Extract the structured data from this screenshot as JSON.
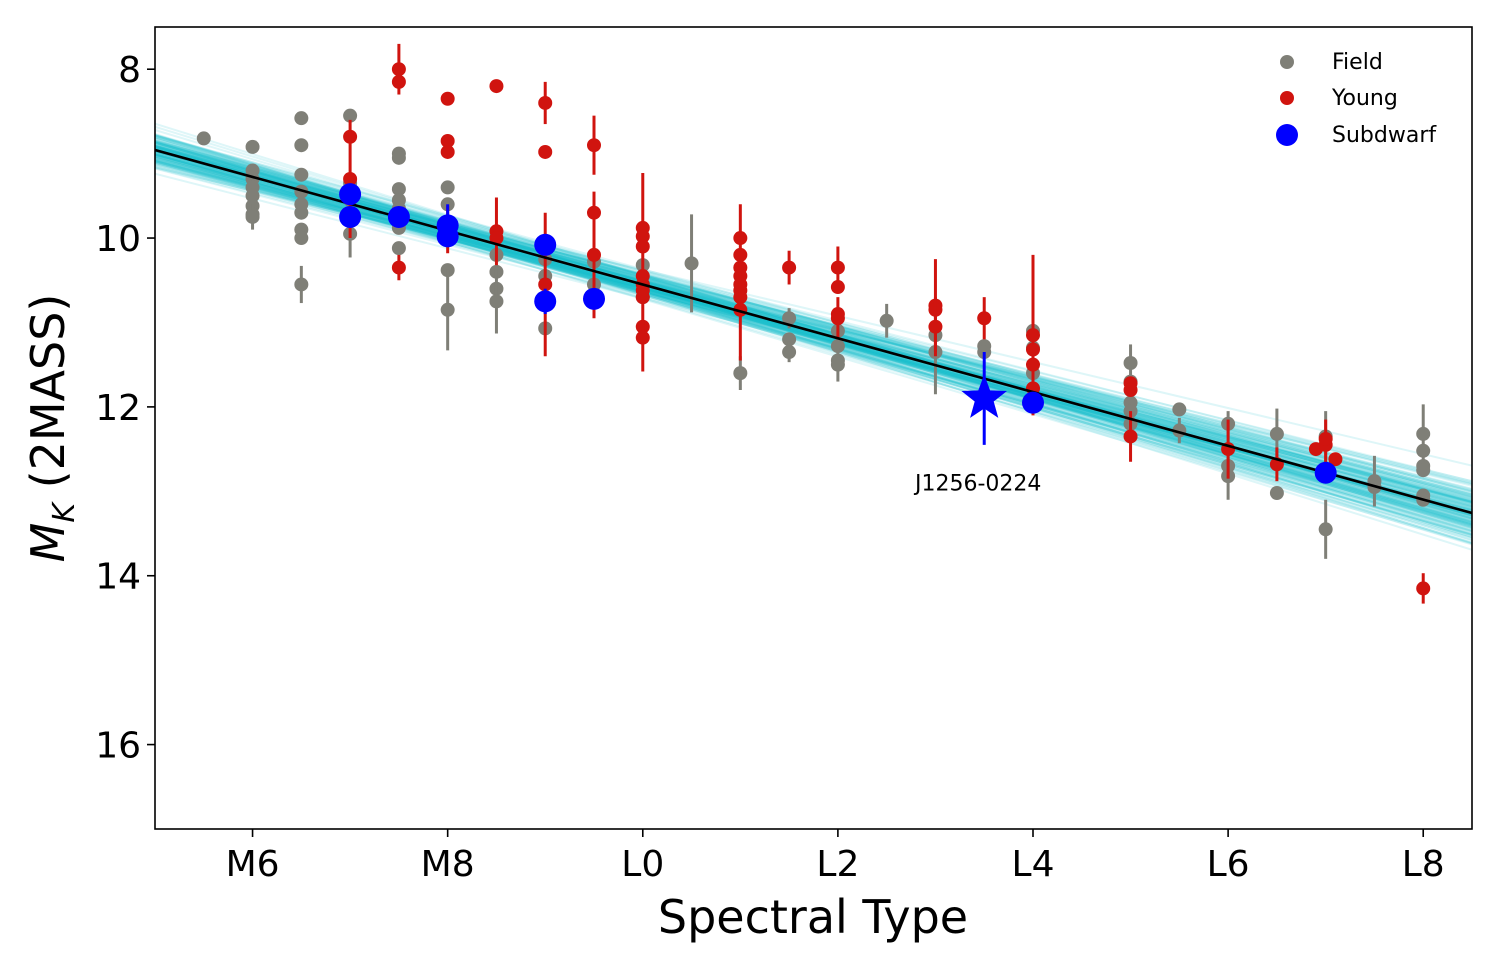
{
  "chart_data": {
    "type": "scatter",
    "xlabel": "Spectral Type",
    "ylabel_main": "M",
    "ylabel_sub": "K",
    "ylabel_suffix": " (2MASS)",
    "xlim": [
      5.0,
      18.5
    ],
    "ylim": [
      17.0,
      7.5
    ],
    "y_inverted": true,
    "x_ticks": [
      {
        "value": 6,
        "label": "M6"
      },
      {
        "value": 8,
        "label": "M8"
      },
      {
        "value": 10,
        "label": "L0"
      },
      {
        "value": 12,
        "label": "L2"
      },
      {
        "value": 14,
        "label": "L4"
      },
      {
        "value": 16,
        "label": "L6"
      },
      {
        "value": 18,
        "label": "L8"
      }
    ],
    "y_ticks": [
      {
        "value": 8,
        "label": "8"
      },
      {
        "value": 10,
        "label": "10"
      },
      {
        "value": 12,
        "label": "12"
      },
      {
        "value": 14,
        "label": "14"
      },
      {
        "value": 16,
        "label": "16"
      }
    ],
    "grid": false,
    "legend_position": "top-right",
    "colors": {
      "field": "#7f7f77",
      "young": "#d0140f",
      "subdwarf": "#0000ff",
      "fit": "#000000",
      "fit_samples": "#17bdca"
    },
    "fit": {
      "intercept": 10.55,
      "slope": 0.3185,
      "pivot_x": 10.0
    },
    "series": [
      {
        "name": "Field",
        "color": "#7f7f77",
        "points": [
          [
            5.5,
            8.82,
            0
          ],
          [
            6,
            8.92,
            0
          ],
          [
            6,
            9.2,
            0
          ],
          [
            6,
            9.3,
            0
          ],
          [
            6,
            9.4,
            0
          ],
          [
            6,
            9.5,
            0
          ],
          [
            6,
            9.62,
            0
          ],
          [
            6,
            9.72,
            0
          ],
          [
            6,
            9.75,
            0.15
          ],
          [
            6.5,
            8.58,
            0
          ],
          [
            6.5,
            8.9,
            0
          ],
          [
            6.5,
            9.25,
            0
          ],
          [
            6.5,
            9.45,
            0
          ],
          [
            6.5,
            9.6,
            0
          ],
          [
            6.5,
            9.7,
            0
          ],
          [
            6.5,
            9.9,
            0
          ],
          [
            6.5,
            10.0,
            0
          ],
          [
            6.5,
            10.55,
            0.22
          ],
          [
            7,
            8.55,
            0
          ],
          [
            7,
            9.35,
            0
          ],
          [
            7,
            9.55,
            0
          ],
          [
            7,
            9.75,
            0
          ],
          [
            7,
            9.95,
            0.28
          ],
          [
            7.5,
            9.0,
            0
          ],
          [
            7.5,
            9.05,
            0
          ],
          [
            7.5,
            9.42,
            0
          ],
          [
            7.5,
            9.55,
            0
          ],
          [
            7.5,
            9.65,
            0
          ],
          [
            7.5,
            9.75,
            0
          ],
          [
            7.5,
            9.88,
            0
          ],
          [
            7.5,
            10.12,
            0
          ],
          [
            8,
            9.4,
            0
          ],
          [
            8,
            9.6,
            0
          ],
          [
            8,
            10.38,
            0
          ],
          [
            8,
            10.85,
            0.48
          ],
          [
            8.5,
            10.2,
            0
          ],
          [
            8.5,
            10.4,
            0
          ],
          [
            8.5,
            10.6,
            0
          ],
          [
            8.5,
            10.75,
            0.38
          ],
          [
            9,
            10.25,
            0
          ],
          [
            9,
            10.45,
            0
          ],
          [
            9,
            11.07,
            0
          ],
          [
            9.5,
            10.28,
            0
          ],
          [
            9.5,
            10.55,
            0
          ],
          [
            10,
            10.32,
            0
          ],
          [
            10,
            10.55,
            0
          ],
          [
            10,
            10.7,
            0
          ],
          [
            10.5,
            10.3,
            0.58
          ],
          [
            11,
            11.6,
            0.2
          ],
          [
            11.5,
            10.95,
            0.12
          ],
          [
            11.5,
            11.2,
            0
          ],
          [
            11.5,
            11.35,
            0.12
          ],
          [
            12,
            11.1,
            0
          ],
          [
            12,
            11.28,
            0
          ],
          [
            12,
            11.45,
            0
          ],
          [
            12,
            11.5,
            0.2
          ],
          [
            12.5,
            10.98,
            0.2
          ],
          [
            13,
            11.15,
            0
          ],
          [
            13,
            11.35,
            0.5
          ],
          [
            13.5,
            11.28,
            0
          ],
          [
            13.5,
            11.35,
            0
          ],
          [
            14,
            11.1,
            0
          ],
          [
            14,
            11.3,
            0
          ],
          [
            14,
            11.6,
            0
          ],
          [
            14,
            11.9,
            0
          ],
          [
            15,
            11.48,
            0.22
          ],
          [
            15,
            11.7,
            0
          ],
          [
            15,
            11.95,
            0
          ],
          [
            15,
            12.05,
            0
          ],
          [
            15,
            12.2,
            0
          ],
          [
            15.5,
            12.03,
            0
          ],
          [
            15.5,
            12.28,
            0.15
          ],
          [
            16,
            12.2,
            0.15
          ],
          [
            16,
            12.7,
            0
          ],
          [
            16,
            12.82,
            0.28
          ],
          [
            16.5,
            12.32,
            0.3
          ],
          [
            16.5,
            13.02,
            0
          ],
          [
            17,
            12.35,
            0.3
          ],
          [
            17,
            13.45,
            0.35
          ],
          [
            17.5,
            12.88,
            0.3
          ],
          [
            17.5,
            12.95,
            0
          ],
          [
            18,
            12.32,
            0.35
          ],
          [
            18,
            12.52,
            0
          ],
          [
            18,
            12.7,
            0
          ],
          [
            18,
            12.75,
            0
          ],
          [
            18,
            13.05,
            0
          ],
          [
            18,
            13.1,
            0
          ]
        ]
      },
      {
        "name": "Young",
        "color": "#d0140f",
        "points": [
          [
            7,
            8.8,
            0
          ],
          [
            7,
            9.3,
            0.7
          ],
          [
            7.5,
            8.0,
            0.3
          ],
          [
            7.5,
            8.15,
            0
          ],
          [
            7.5,
            10.35,
            0.15
          ],
          [
            8,
            8.35,
            0
          ],
          [
            8,
            8.85,
            0
          ],
          [
            8,
            8.98,
            0
          ],
          [
            8,
            9.9,
            0.28
          ],
          [
            8.5,
            8.2,
            0
          ],
          [
            8.5,
            9.92,
            0.4
          ],
          [
            8.5,
            10.0,
            0
          ],
          [
            9,
            8.4,
            0.25
          ],
          [
            9,
            8.98,
            0
          ],
          [
            9,
            10.55,
            0.85
          ],
          [
            9.5,
            8.9,
            0.35
          ],
          [
            9.5,
            9.7,
            0
          ],
          [
            9.5,
            10.2,
            0.75
          ],
          [
            10,
            9.88,
            0.65
          ],
          [
            10,
            9.98,
            0
          ],
          [
            10,
            10.1,
            0
          ],
          [
            10,
            10.45,
            0
          ],
          [
            10,
            10.55,
            0
          ],
          [
            10,
            10.62,
            0
          ],
          [
            10,
            10.7,
            0
          ],
          [
            10,
            11.05,
            0
          ],
          [
            10,
            11.18,
            0.4
          ],
          [
            11,
            10.0,
            0.4
          ],
          [
            11,
            10.2,
            0
          ],
          [
            11,
            10.35,
            0
          ],
          [
            11,
            10.45,
            0
          ],
          [
            11,
            10.55,
            0
          ],
          [
            11,
            10.62,
            0
          ],
          [
            11,
            10.7,
            0
          ],
          [
            11,
            10.85,
            0.6
          ],
          [
            11.5,
            10.35,
            0.2
          ],
          [
            12,
            10.35,
            0.25
          ],
          [
            12,
            10.58,
            0
          ],
          [
            12,
            10.9,
            0
          ],
          [
            12,
            10.95,
            0.25
          ],
          [
            13,
            10.8,
            0.55
          ],
          [
            13,
            10.85,
            0
          ],
          [
            13,
            11.05,
            0.35
          ],
          [
            13.5,
            10.95,
            0.25
          ],
          [
            14,
            11.15,
            0.95
          ],
          [
            14,
            11.32,
            0
          ],
          [
            14,
            11.5,
            0
          ],
          [
            14,
            11.78,
            0
          ],
          [
            15,
            11.72,
            0
          ],
          [
            15,
            11.8,
            0
          ],
          [
            15,
            12.35,
            0.3
          ],
          [
            16,
            12.5,
            0.35
          ],
          [
            16.5,
            12.68,
            0.2
          ],
          [
            16.9,
            12.5,
            0
          ],
          [
            17,
            12.45,
            0.3
          ],
          [
            17,
            12.38,
            0
          ],
          [
            17.1,
            12.62,
            0
          ],
          [
            18,
            14.15,
            0.18
          ]
        ]
      },
      {
        "name": "Subdwarf",
        "color": "#0000ff",
        "points": [
          [
            7,
            9.48,
            0
          ],
          [
            7,
            9.75,
            0
          ],
          [
            7.5,
            9.75,
            0
          ],
          [
            8,
            9.85,
            0.25
          ],
          [
            8,
            9.98,
            0
          ],
          [
            9,
            10.08,
            0
          ],
          [
            9,
            10.75,
            0.15
          ],
          [
            9.5,
            10.72,
            0
          ],
          [
            14,
            11.95,
            0
          ],
          [
            17,
            12.78,
            0
          ]
        ]
      }
    ],
    "highlight": {
      "x": 13.5,
      "y": 11.9,
      "yerr": 0.55,
      "label": "J1256-0224"
    }
  }
}
